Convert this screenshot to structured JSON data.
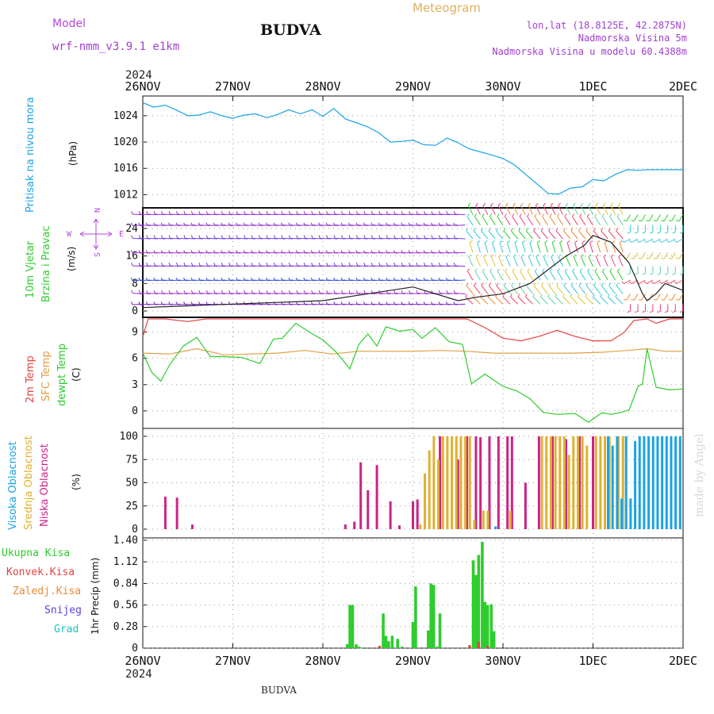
{
  "header": {
    "model_label": "Model",
    "model_name": "wrf-nmm_v3.9.1 e1km",
    "station": "BUDVA",
    "chart_kind": "Meteogram",
    "lonlat": "lon,lat (18.8125E, 42.2875N)",
    "elevation": "Nadmorska Visina 5m",
    "model_elevation": "Nadmorska Visina u modelu 60.4388m",
    "watermark": "made by Angel",
    "footer_station": "BUDVA",
    "colors": {
      "model": "#b44ad8",
      "meteogram": "#e0b060",
      "meta": "#a040d0"
    }
  },
  "time_axis": {
    "year": "2024",
    "ticks": [
      "26NOV",
      "27NOV",
      "28NOV",
      "29NOV",
      "30NOV",
      "1DEC",
      "2DEC"
    ],
    "range_days": [
      0,
      6
    ]
  },
  "chart_data": [
    {
      "type": "line",
      "panel": "pressure",
      "labels": [
        "Pritisak na nivou mora",
        "(hPa)"
      ],
      "ylim": [
        1010,
        1027
      ],
      "yticks": [
        1012,
        1016,
        1020,
        1024
      ],
      "grid": true,
      "color": "#1aa3e8",
      "x": [
        0,
        0.12,
        0.25,
        0.38,
        0.5,
        0.62,
        0.75,
        0.88,
        1.0,
        1.12,
        1.25,
        1.38,
        1.5,
        1.62,
        1.75,
        1.88,
        2.0,
        2.12,
        2.25,
        2.38,
        2.5,
        2.62,
        2.75,
        2.88,
        3.0,
        3.12,
        3.25,
        3.38,
        3.5,
        3.62,
        3.75,
        3.88,
        4.0,
        4.12,
        4.25,
        4.38,
        4.5,
        4.62,
        4.75,
        4.88,
        5.0,
        5.12,
        5.25,
        5.38,
        5.5,
        5.62,
        5.75,
        5.88,
        6.0
      ],
      "y": [
        1026,
        1025.3,
        1025.6,
        1024.8,
        1024,
        1024.1,
        1024.6,
        1024,
        1023.6,
        1024.1,
        1024.3,
        1023.7,
        1024.2,
        1024.9,
        1024.3,
        1024.9,
        1023.9,
        1025.1,
        1023.5,
        1022.9,
        1022.3,
        1021.4,
        1020,
        1020.1,
        1020.3,
        1019.6,
        1019.5,
        1020.6,
        1019.9,
        1019,
        1018.5,
        1018,
        1017.5,
        1016.6,
        1015.1,
        1013.6,
        1012.2,
        1012.1,
        1013,
        1013.2,
        1014.3,
        1014.1,
        1015.1,
        1015.8,
        1015.7,
        1015.8,
        1015.8,
        1015.8,
        1015.8
      ]
    },
    {
      "type": "wind-barbs",
      "panel": "wind",
      "labels": [
        "10m Vjetar",
        "Brzina i Pravac",
        "(m/s)"
      ],
      "compass": {
        "n": "N",
        "s": "S",
        "w": "W",
        "e": "E"
      },
      "ylim": [
        0,
        30
      ],
      "yticks": [
        0,
        8,
        16,
        24
      ],
      "grid": true,
      "speed_line": {
        "x": [
          0,
          0.5,
          1.0,
          1.5,
          2.0,
          2.5,
          3.0,
          3.5,
          3.7,
          4.0,
          4.3,
          4.5,
          4.7,
          4.9,
          5.0,
          5.2,
          5.4,
          5.5,
          5.55,
          5.6,
          5.7,
          5.8,
          5.9,
          6.0
        ],
        "y": [
          1,
          1.5,
          2,
          2.5,
          3,
          5,
          7,
          3,
          4,
          5,
          8,
          12,
          16,
          19,
          22,
          20,
          14,
          8,
          5,
          3,
          5,
          8,
          7,
          6
        ]
      }
    },
    {
      "type": "line",
      "panel": "temperature",
      "labels": [
        "2m Temp",
        "SFC Temp",
        "dewpt Temp",
        "(C)"
      ],
      "ylim": [
        -2,
        10.5
      ],
      "yticks": [
        0,
        3,
        6,
        9
      ],
      "grid": true,
      "series": [
        {
          "name": "2m Temp",
          "color": "#e64040",
          "x": [
            0,
            0.06,
            0.25,
            0.5,
            0.7,
            1.0,
            1.5,
            2.0,
            2.5,
            3.0,
            3.5,
            3.6,
            3.8,
            4.0,
            4.2,
            4.4,
            4.6,
            4.8,
            5.0,
            5.2,
            5.35,
            5.45,
            5.6,
            5.7,
            5.85,
            6.0
          ],
          "y": [
            8.5,
            10.5,
            10.5,
            10.2,
            10.6,
            11,
            11,
            11,
            11,
            11,
            11,
            10.5,
            9.5,
            8.3,
            8,
            8.5,
            9.2,
            8.5,
            8,
            8,
            9,
            10.3,
            10.5,
            10,
            10.8,
            10.5
          ]
        },
        {
          "name": "SFC Temp",
          "color": "#e0a040",
          "x": [
            0,
            0.3,
            0.6,
            0.9,
            1.2,
            1.5,
            1.8,
            2.1,
            2.4,
            2.7,
            3.0,
            3.3,
            3.6,
            3.9,
            4.2,
            4.5,
            4.8,
            5.1,
            5.4,
            5.6,
            5.8,
            6.0
          ],
          "y": [
            6.6,
            6.5,
            7.1,
            6.4,
            6.5,
            6.6,
            6.9,
            6.5,
            6.8,
            6.8,
            6.8,
            6.9,
            6.8,
            6.6,
            6.6,
            6.6,
            6.6,
            6.7,
            6.9,
            7.1,
            6.8,
            6.8
          ]
        },
        {
          "name": "dewpt Temp",
          "color": "#2ecc2e",
          "x": [
            0,
            0.1,
            0.2,
            0.3,
            0.45,
            0.6,
            0.75,
            0.9,
            1.1,
            1.3,
            1.45,
            1.55,
            1.7,
            1.85,
            2.0,
            2.15,
            2.3,
            2.4,
            2.5,
            2.6,
            2.7,
            2.85,
            3.0,
            3.1,
            3.25,
            3.4,
            3.55,
            3.65,
            3.8,
            4.0,
            4.15,
            4.3,
            4.45,
            4.6,
            4.8,
            4.95,
            5.1,
            5.2,
            5.3,
            5.4,
            5.5,
            5.55,
            5.6,
            5.7,
            5.85,
            6.0
          ],
          "y": [
            6.6,
            4.4,
            3.4,
            5.3,
            7.4,
            8.4,
            6.2,
            6.2,
            6.1,
            5.4,
            8.2,
            8.3,
            10,
            9,
            8.1,
            6.7,
            4.8,
            7.6,
            8.8,
            7.4,
            9.6,
            9.1,
            9.3,
            8.3,
            9.5,
            7.9,
            7.6,
            3.1,
            4.2,
            2.8,
            2.3,
            1.4,
            -0.2,
            -0.4,
            -0.3,
            -1.3,
            -0.2,
            -0.4,
            -0.2,
            0.1,
            2.8,
            3.1,
            7.1,
            2.7,
            2.4,
            2.5
          ]
        }
      ]
    },
    {
      "type": "bar",
      "panel": "cloud",
      "labels": [
        "Visoka Oblacnost",
        "Srednja Oblacnost",
        "Niska Oblacnost",
        "(%)"
      ],
      "ylim": [
        0,
        100
      ],
      "yticks": [
        0,
        25,
        50,
        75,
        100
      ],
      "grid": true,
      "series": [
        {
          "name": "Niska Oblacnost",
          "color": "#cc2288",
          "x": [
            0.25,
            0.38,
            0.55,
            2.25,
            2.35,
            2.42,
            2.5,
            2.6,
            2.75,
            2.85,
            3.0,
            3.05,
            3.3,
            3.5,
            3.6,
            3.7,
            3.75,
            3.85,
            3.95,
            4.05,
            4.1,
            4.25,
            4.4,
            4.55,
            4.7,
            4.85,
            5.0
          ],
          "y": [
            35,
            34,
            5,
            5,
            8,
            72,
            42,
            69,
            30,
            4,
            30,
            32,
            100,
            75,
            100,
            100,
            99,
            100,
            100,
            100,
            100,
            50,
            100,
            100,
            97,
            100,
            100
          ]
        },
        {
          "name": "Srednja Oblacnost",
          "color": "#e0b030",
          "x": [
            3.1,
            3.15,
            3.2,
            3.25,
            3.3,
            3.35,
            3.4,
            3.45,
            3.5,
            3.55,
            3.6,
            3.65,
            3.7,
            3.8,
            3.85,
            4.1,
            4.45,
            4.5,
            4.55,
            4.6,
            4.65,
            4.7,
            4.75,
            4.8,
            4.85,
            4.9,
            4.95,
            5.05,
            5.1,
            5.15,
            5.2,
            5.3,
            5.35
          ],
          "y": [
            5,
            60,
            85,
            100,
            75,
            100,
            100,
            100,
            100,
            100,
            100,
            100,
            10,
            20,
            20,
            20,
            100,
            100,
            100,
            100,
            100,
            100,
            80,
            100,
            100,
            100,
            90,
            100,
            100,
            100,
            100,
            100,
            100
          ]
        },
        {
          "name": "Visoka Oblacnost",
          "color": "#1aa3e8",
          "x": [
            3.9,
            5.15,
            5.2,
            5.25,
            5.3,
            5.35,
            5.4,
            5.45,
            5.5,
            5.55,
            5.6,
            5.65,
            5.7,
            5.75,
            5.8,
            5.85,
            5.9,
            5.95
          ],
          "y": [
            3,
            100,
            90,
            100,
            33,
            100,
            33,
            95,
            100,
            100,
            100,
            100,
            100,
            100,
            100,
            100,
            100,
            100
          ]
        }
      ]
    },
    {
      "type": "bar",
      "panel": "precip",
      "labels": [
        "1hr Precip (mm)"
      ],
      "legend": [
        {
          "name": "Ukupna Kisa",
          "color": "#2ecc2e"
        },
        {
          "name": "Konvek.Kisa",
          "color": "#e64040"
        },
        {
          "name": "Zaledj.Kisa",
          "color": "#ee8833"
        },
        {
          "name": "Snijeg",
          "color": "#6040e0"
        },
        {
          "name": "Grad",
          "color": "#20c0c0"
        }
      ],
      "ylim": [
        0,
        1.4
      ],
      "yticks": [
        0,
        0.28,
        0.56,
        0.84,
        1.12,
        1.4
      ],
      "grid": true,
      "total_rain": {
        "x": [
          2.27,
          2.3,
          2.33,
          2.37,
          2.4,
          2.42,
          2.63,
          2.67,
          2.7,
          2.73,
          2.77,
          2.83,
          2.88,
          3.0,
          3.03,
          3.17,
          3.2,
          3.23,
          3.27,
          3.3,
          3.63,
          3.67,
          3.7,
          3.73,
          3.77,
          3.8,
          3.83,
          3.87,
          3.9
        ],
        "y": [
          0.05,
          0.56,
          0.56,
          0.05,
          0.02,
          0.0,
          0.02,
          0.45,
          0.16,
          0.09,
          0.16,
          0.12,
          0.02,
          0.34,
          0.8,
          0.23,
          0.84,
          0.82,
          0.02,
          0.45,
          0.02,
          1.14,
          0.95,
          1.21,
          1.38,
          0.6,
          0.56,
          0.57,
          0.22
        ]
      },
      "convective_rain": {
        "x": [
          2.63,
          3.63,
          3.73,
          3.83
        ],
        "y": [
          0.03,
          0.04,
          0.08,
          0.03
        ]
      }
    }
  ]
}
